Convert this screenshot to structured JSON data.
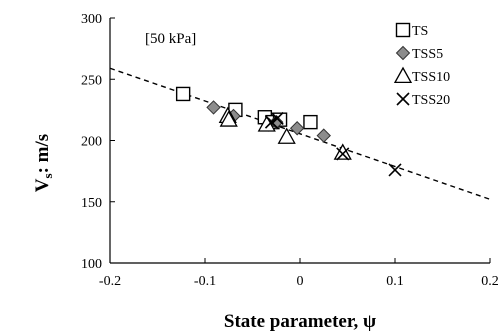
{
  "chart_data": {
    "type": "scatter",
    "annotation": "[50 kPa]",
    "xlabel": "State parameter, ψ",
    "ylabel_main": "V",
    "ylabel_sub": "s",
    "ylabel_rest": ": m/s",
    "xlim": [
      -0.2,
      0.2
    ],
    "ylim": [
      100,
      300
    ],
    "x_ticks": [
      -0.2,
      -0.1,
      0,
      0.1,
      0.2
    ],
    "x_tick_labels": [
      "-0.2",
      "-0.1",
      "0",
      "0.1",
      "0.2"
    ],
    "y_ticks": [
      100,
      150,
      200,
      250,
      300
    ],
    "y_tick_labels": [
      "100",
      "150",
      "200",
      "250",
      "300"
    ],
    "grid": false,
    "legend_position": "top-right",
    "series": [
      {
        "name": "TS",
        "marker": "open-square",
        "points": [
          [
            -0.123,
            238
          ],
          [
            -0.068,
            225
          ],
          [
            -0.037,
            219
          ],
          [
            -0.029,
            215
          ],
          [
            -0.021,
            217
          ],
          [
            0.011,
            215
          ]
        ]
      },
      {
        "name": "TSS5",
        "marker": "filled-diamond",
        "points": [
          [
            -0.091,
            227
          ],
          [
            -0.07,
            220
          ],
          [
            -0.033,
            213
          ],
          [
            -0.025,
            215
          ],
          [
            -0.003,
            210
          ],
          [
            0.025,
            204
          ]
        ]
      },
      {
        "name": "TSS10",
        "marker": "open-triangle",
        "points": [
          [
            -0.076,
            220
          ],
          [
            -0.075,
            217
          ],
          [
            -0.035,
            213
          ],
          [
            -0.014,
            203
          ],
          [
            0.045,
            190
          ]
        ]
      },
      {
        "name": "TSS20",
        "marker": "x",
        "points": [
          [
            -0.03,
            215
          ],
          [
            -0.024,
            218
          ],
          [
            0.045,
            189
          ],
          [
            0.1,
            176
          ]
        ]
      }
    ],
    "trend_line": {
      "style": "dashed",
      "points": [
        [
          -0.2,
          259
        ],
        [
          0.2,
          152
        ]
      ]
    }
  }
}
